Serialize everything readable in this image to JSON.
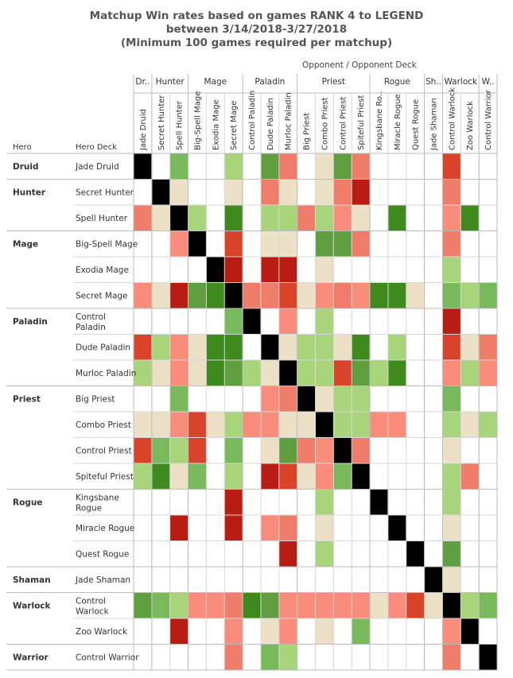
{
  "title": {
    "line1": "Matchup Win rates based on games RANK 4 to LEGEND",
    "line2": "between 3/14/2018-3/27/2018",
    "line3": "(Minimum 100 games required per matchup)"
  },
  "opponent_header": "Opponent  /  Opponent Deck",
  "row_headers": {
    "hero": "Hero",
    "deck": "Hero Deck"
  },
  "colors": {
    "dark_red": "#b91c12",
    "red": "#d9432a",
    "salmon": "#f07c6a",
    "light_salmon": "#fa8c7c",
    "beige": "#ece0c6",
    "light_green": "#a8d57a",
    "green": "#78b95b",
    "mid_green": "#5f9f40",
    "dark_green": "#3f8a1c",
    "self": "#000000",
    "none": "#ffffff"
  },
  "chart_data": {
    "type": "heatmap",
    "title": "Matchup Win rates based on games RANK 4 to LEGEND between 3/14/2018-3/27/2018 (Minimum 100 games required per matchup)",
    "x_axis_title": "Opponent / Opponent Deck",
    "class_groups": [
      {
        "name": "Dr..",
        "span": 1
      },
      {
        "name": "Hunter",
        "span": 2
      },
      {
        "name": "Mage",
        "span": 3
      },
      {
        "name": "Paladin",
        "span": 3
      },
      {
        "name": "Priest",
        "span": 4
      },
      {
        "name": "Rogue",
        "span": 3
      },
      {
        "name": "Sh..",
        "span": 1
      },
      {
        "name": "Warlock",
        "span": 2
      },
      {
        "name": "W..",
        "span": 1
      }
    ],
    "opponent_decks": [
      "Jade Druid",
      "Secret Hunter",
      "Spell Hunter",
      "Big-Spell Mage",
      "Exodia Mage",
      "Secret Mage",
      "Control Paladin",
      "Dude Paladin",
      "Murloc Paladin",
      "Big Priest",
      "Combo Priest",
      "Control Priest",
      "Spiteful Priest",
      "Kingsbane Ro..",
      "Miracle Rogue",
      "Quest Rogue",
      "Jade Shaman",
      "Control Warlock",
      "Zoo Warlock",
      "Control Warrior"
    ],
    "hero_groups": [
      {
        "name": "Druid",
        "span": 1
      },
      {
        "name": "Hunter",
        "span": 2
      },
      {
        "name": "Mage",
        "span": 3
      },
      {
        "name": "Paladin",
        "span": 3
      },
      {
        "name": "Priest",
        "span": 4
      },
      {
        "name": "Rogue",
        "span": 3
      },
      {
        "name": "Shaman",
        "span": 1
      },
      {
        "name": "Warlock",
        "span": 2
      },
      {
        "name": "Warrior",
        "span": 1
      }
    ],
    "hero_decks": [
      "Jade Druid",
      "Secret Hunter",
      "Spell Hunter",
      "Big-Spell Mage",
      "Exodia Mage",
      "Secret Mage",
      "Control Paladin",
      "Dude Paladin",
      "Murloc Paladin",
      "Big Priest",
      "Combo Priest",
      "Control Priest",
      "Spiteful Priest",
      "Kingsbane Rogue",
      "Miracle Rogue",
      "Quest Rogue",
      "Jade Shaman",
      "Control Warlock",
      "Zoo Warlock",
      "Control Warrior"
    ],
    "hero_deck_lines": [
      [
        "Jade Druid"
      ],
      [
        "Secret Hunter"
      ],
      [
        "Spell Hunter"
      ],
      [
        "Big-Spell Mage"
      ],
      [
        "Exodia Mage"
      ],
      [
        "Secret Mage"
      ],
      [
        "Control",
        "Paladin"
      ],
      [
        "Dude Paladin"
      ],
      [
        "Murloc Paladin"
      ],
      [
        "Big Priest"
      ],
      [
        "Combo Priest"
      ],
      [
        "Control Priest"
      ],
      [
        "Spiteful Priest"
      ],
      [
        "Kingsbane",
        "Rogue"
      ],
      [
        "Miracle Rogue"
      ],
      [
        "Quest Rogue"
      ],
      [
        "Jade Shaman"
      ],
      [
        "Control",
        "Warlock"
      ],
      [
        "Zoo Warlock"
      ],
      [
        "Control Warrior"
      ]
    ],
    "legend_levels": [
      "dark_red",
      "red",
      "salmon",
      "light_salmon",
      "beige",
      "light_green",
      "green",
      "mid_green",
      "dark_green"
    ],
    "cells": [
      [
        "self",
        "none",
        "green",
        "none",
        "none",
        "light_green",
        "none",
        "mid_green",
        "salmon",
        "none",
        "beige",
        "mid_green",
        "salmon",
        "none",
        "none",
        "none",
        "none",
        "red",
        "none",
        "none"
      ],
      [
        "none",
        "self",
        "beige",
        "none",
        "none",
        "beige",
        "none",
        "salmon",
        "beige",
        "none",
        "beige",
        "salmon",
        "dark_red",
        "none",
        "none",
        "none",
        "none",
        "salmon",
        "none",
        "none"
      ],
      [
        "salmon",
        "beige",
        "self",
        "light_green",
        "none",
        "dark_green",
        "none",
        "light_green",
        "light_green",
        "salmon",
        "light_green",
        "light_salmon",
        "beige",
        "none",
        "dark_green",
        "none",
        "none",
        "light_salmon",
        "dark_green",
        "none"
      ],
      [
        "none",
        "none",
        "light_salmon",
        "self",
        "none",
        "red",
        "none",
        "beige",
        "beige",
        "none",
        "mid_green",
        "mid_green",
        "salmon",
        "none",
        "none",
        "none",
        "none",
        "salmon",
        "none",
        "none"
      ],
      [
        "none",
        "none",
        "none",
        "none",
        "self",
        "dark_red",
        "none",
        "dark_red",
        "dark_red",
        "none",
        "beige",
        "none",
        "none",
        "none",
        "none",
        "none",
        "none",
        "light_green",
        "none",
        "none"
      ],
      [
        "light_salmon",
        "beige",
        "dark_red",
        "mid_green",
        "dark_green",
        "self",
        "salmon",
        "salmon",
        "red",
        "beige",
        "light_salmon",
        "salmon",
        "light_salmon",
        "dark_green",
        "dark_green",
        "beige",
        "none",
        "green",
        "light_green",
        "green"
      ],
      [
        "none",
        "none",
        "none",
        "none",
        "none",
        "green",
        "self",
        "none",
        "light_salmon",
        "none",
        "light_green",
        "none",
        "none",
        "none",
        "none",
        "none",
        "none",
        "dark_red",
        "none",
        "none"
      ],
      [
        "red",
        "light_green",
        "light_salmon",
        "beige",
        "dark_green",
        "dark_green",
        "none",
        "self",
        "beige",
        "light_green",
        "light_green",
        "beige",
        "dark_green",
        "none",
        "light_green",
        "none",
        "none",
        "red",
        "beige",
        "salmon"
      ],
      [
        "light_green",
        "beige",
        "light_salmon",
        "beige",
        "dark_green",
        "mid_green",
        "light_green",
        "beige",
        "self",
        "light_green",
        "light_green",
        "red",
        "mid_green",
        "light_green",
        "dark_green",
        "none",
        "none",
        "light_salmon",
        "light_green",
        "light_salmon"
      ],
      [
        "none",
        "none",
        "green",
        "none",
        "none",
        "none",
        "none",
        "light_salmon",
        "salmon",
        "self",
        "beige",
        "light_green",
        "light_green",
        "none",
        "none",
        "none",
        "none",
        "green",
        "none",
        "none"
      ],
      [
        "beige",
        "beige",
        "light_salmon",
        "red",
        "beige",
        "light_green",
        "light_salmon",
        "light_salmon",
        "beige",
        "beige",
        "self",
        "light_green",
        "light_green",
        "light_salmon",
        "light_salmon",
        "none",
        "none",
        "light_green",
        "beige",
        "light_green"
      ],
      [
        "red",
        "green",
        "light_green",
        "red",
        "none",
        "green",
        "none",
        "beige",
        "mid_green",
        "salmon",
        "light_salmon",
        "self",
        "salmon",
        "none",
        "none",
        "none",
        "none",
        "beige",
        "none",
        "none"
      ],
      [
        "light_green",
        "dark_green",
        "beige",
        "green",
        "none",
        "light_green",
        "none",
        "dark_red",
        "red",
        "beige",
        "light_salmon",
        "green",
        "self",
        "none",
        "none",
        "none",
        "none",
        "light_green",
        "salmon",
        "none"
      ],
      [
        "none",
        "none",
        "none",
        "none",
        "none",
        "dark_red",
        "none",
        "none",
        "none",
        "none",
        "light_green",
        "none",
        "none",
        "self",
        "none",
        "none",
        "none",
        "light_green",
        "none",
        "none"
      ],
      [
        "none",
        "none",
        "dark_red",
        "none",
        "none",
        "dark_red",
        "none",
        "light_salmon",
        "salmon",
        "none",
        "beige",
        "none",
        "none",
        "none",
        "self",
        "none",
        "none",
        "beige",
        "none",
        "none"
      ],
      [
        "none",
        "none",
        "none",
        "none",
        "none",
        "none",
        "none",
        "none",
        "dark_red",
        "none",
        "light_green",
        "none",
        "none",
        "none",
        "none",
        "self",
        "none",
        "mid_green",
        "none",
        "none"
      ],
      [
        "none",
        "none",
        "none",
        "none",
        "none",
        "none",
        "none",
        "none",
        "none",
        "none",
        "none",
        "none",
        "none",
        "none",
        "none",
        "none",
        "self",
        "beige",
        "none",
        "none"
      ],
      [
        "mid_green",
        "green",
        "light_green",
        "light_salmon",
        "light_salmon",
        "salmon",
        "dark_green",
        "mid_green",
        "light_salmon",
        "light_salmon",
        "light_salmon",
        "light_salmon",
        "light_salmon",
        "beige",
        "light_salmon",
        "red",
        "beige",
        "self",
        "light_green",
        "green"
      ],
      [
        "none",
        "none",
        "dark_red",
        "none",
        "none",
        "light_salmon",
        "none",
        "beige",
        "light_salmon",
        "none",
        "beige",
        "none",
        "green",
        "none",
        "none",
        "none",
        "none",
        "light_salmon",
        "self",
        "none"
      ],
      [
        "none",
        "none",
        "none",
        "none",
        "none",
        "salmon",
        "none",
        "green",
        "light_green",
        "none",
        "none",
        "none",
        "none",
        "none",
        "none",
        "none",
        "none",
        "salmon",
        "none",
        "self"
      ]
    ]
  }
}
